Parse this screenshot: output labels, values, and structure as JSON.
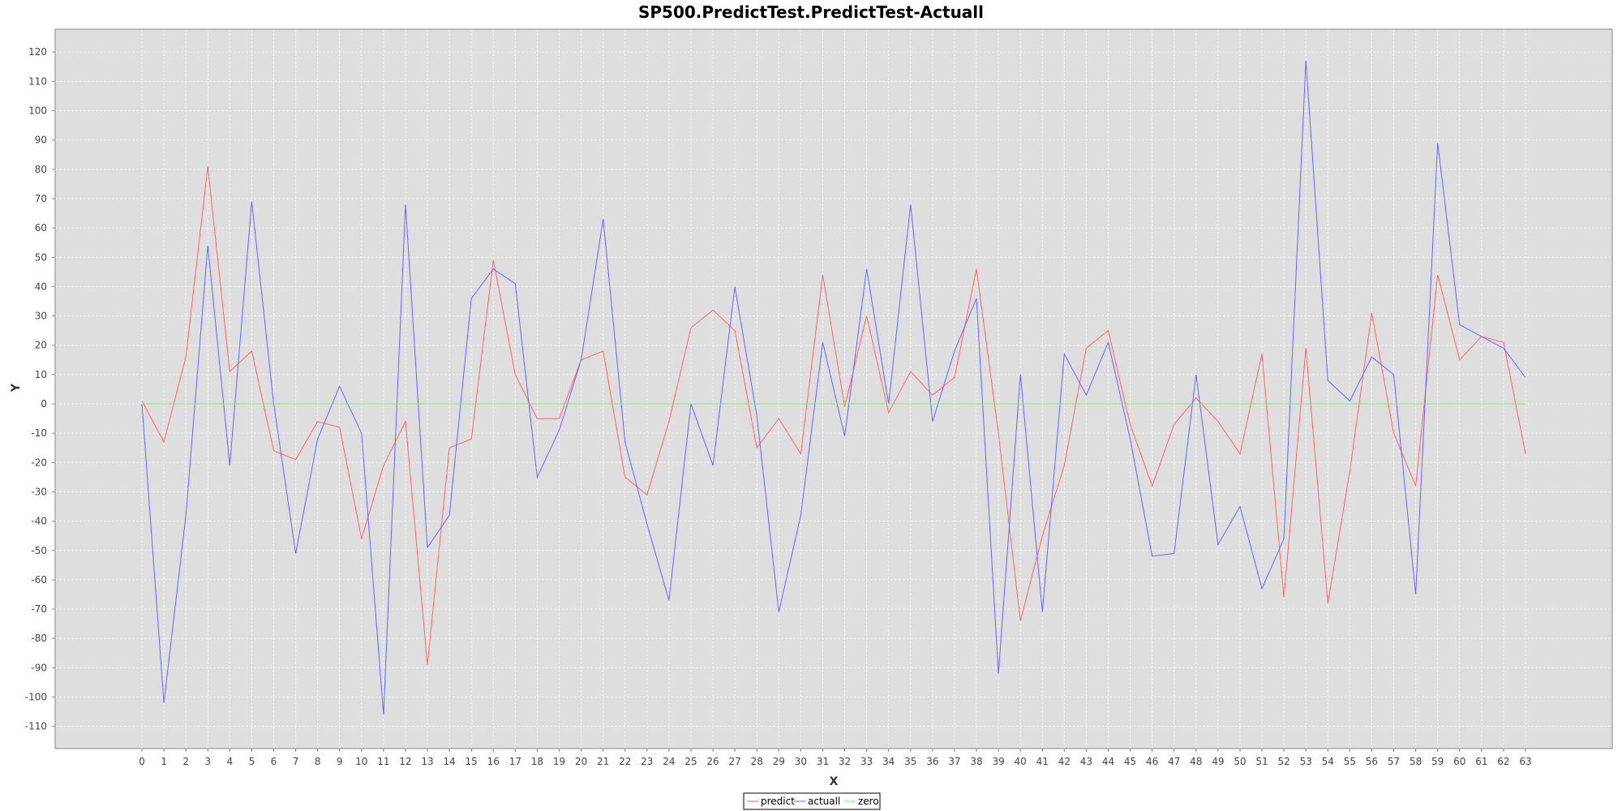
{
  "chart_data": {
    "type": "line",
    "title": "SP500.PredictTest.PredictTest-Actuall",
    "xlabel": "X",
    "ylabel": "Y",
    "xlim": [
      0,
      63
    ],
    "ylim": [
      -115,
      125
    ],
    "x": [
      0,
      1,
      2,
      3,
      4,
      5,
      6,
      7,
      8,
      9,
      10,
      11,
      12,
      13,
      14,
      15,
      16,
      17,
      18,
      19,
      20,
      21,
      22,
      23,
      24,
      25,
      26,
      27,
      28,
      29,
      30,
      31,
      32,
      33,
      34,
      35,
      36,
      37,
      38,
      39,
      40,
      41,
      42,
      43,
      44,
      45,
      46,
      47,
      48,
      49,
      50,
      51,
      52,
      53,
      54,
      55,
      56,
      57,
      58,
      59,
      60,
      61,
      62,
      63
    ],
    "x_ticks": [
      "0",
      "1",
      "2",
      "3",
      "4",
      "5",
      "6",
      "7",
      "8",
      "9",
      "10",
      "11",
      "12",
      "13",
      "14",
      "15",
      "16",
      "17",
      "18",
      "19",
      "20",
      "21",
      "22",
      "23",
      "24",
      "25",
      "26",
      "27",
      "28",
      "29",
      "30",
      "31",
      "32",
      "33",
      "34",
      "35",
      "36",
      "37",
      "38",
      "39",
      "40",
      "41",
      "42",
      "43",
      "44",
      "45",
      "46",
      "47",
      "48",
      "49",
      "50",
      "51",
      "52",
      "53",
      "54",
      "55",
      "56",
      "57",
      "58",
      "59",
      "60",
      "61",
      "62",
      "63"
    ],
    "y_ticks": [
      "120",
      "110",
      "100",
      "90",
      "80",
      "70",
      "60",
      "50",
      "40",
      "30",
      "20",
      "10",
      "0",
      "-10",
      "-20",
      "-30",
      "-40",
      "-50",
      "-60",
      "-70",
      "-80",
      "-90",
      "-100",
      "-110"
    ],
    "grid": true,
    "legend_placement": "bottom-center",
    "series": [
      {
        "name": "predict",
        "color": "#ff6666",
        "values": [
          1,
          -13,
          16,
          81,
          11,
          18,
          -16,
          -19,
          -6,
          -8,
          -46,
          -21,
          -6,
          -89,
          -15,
          -12,
          49,
          10,
          -5,
          -5,
          15,
          18,
          -25,
          -31,
          -6,
          26,
          32,
          25,
          -15,
          -5,
          -17,
          44,
          -1,
          30,
          -3,
          11,
          3,
          9,
          46,
          -10,
          -74,
          -45,
          -21,
          19,
          25,
          -7,
          -28,
          -7,
          2,
          -6,
          -17,
          17,
          -66,
          19,
          -68,
          -23,
          31,
          -10,
          -28,
          44,
          15,
          23,
          21,
          -17
        ]
      },
      {
        "name": "actuall",
        "color": "#6666ff",
        "values": [
          0,
          -102,
          -38,
          54,
          -21,
          69,
          0,
          -51,
          -12,
          6,
          -10,
          -106,
          68,
          -49,
          -38,
          36,
          46,
          41,
          -25,
          -9,
          15,
          63,
          -13,
          -41,
          -67,
          0,
          -21,
          40,
          -4,
          -71,
          -38,
          21,
          -11,
          46,
          0,
          68,
          -6,
          18,
          36,
          -92,
          10,
          -71,
          17,
          3,
          21,
          -12,
          -52,
          -51,
          10,
          -48,
          -35,
          -63,
          -46,
          117,
          8,
          1,
          16,
          10,
          -65,
          89,
          27,
          23,
          19,
          9
        ]
      },
      {
        "name": "zero",
        "color": "#66ff66",
        "values": [
          0,
          0,
          0,
          0,
          0,
          0,
          0,
          0,
          0,
          0,
          0,
          0,
          0,
          0,
          0,
          0,
          0,
          0,
          0,
          0,
          0,
          0,
          0,
          0,
          0,
          0,
          0,
          0,
          0,
          0,
          0,
          0,
          0,
          0,
          0,
          0,
          0,
          0,
          0,
          0,
          0,
          0,
          0,
          0,
          0,
          0,
          0,
          0,
          0,
          0,
          0,
          0,
          0,
          0,
          0,
          0,
          0,
          0,
          0,
          0,
          0,
          0,
          0,
          0
        ]
      }
    ],
    "colors": {
      "plot_background": "#dedede",
      "grid": "#f4f4f4",
      "frame": "#888888"
    }
  }
}
